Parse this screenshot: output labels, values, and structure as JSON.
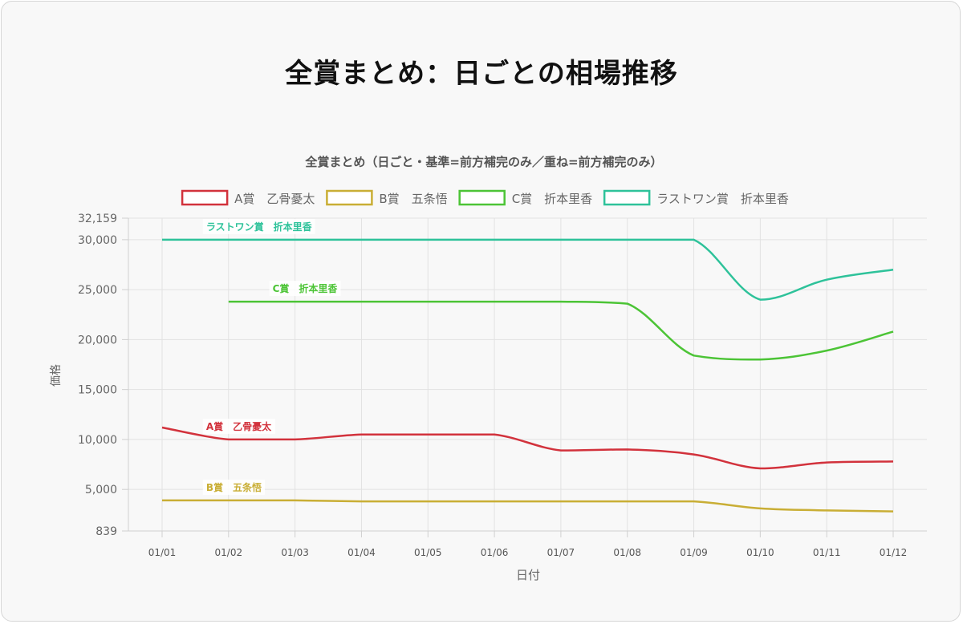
{
  "page": {
    "title": "全賞まとめ：日ごとの相場推移"
  },
  "chart_data": {
    "type": "line",
    "title": "全賞まとめ（日ごと・基準=前方補完のみ／重ね=前方補完のみ）",
    "xlabel": "日付",
    "ylabel": "価格",
    "categories": [
      "01/01",
      "01/02",
      "01/03",
      "01/04",
      "01/05",
      "01/06",
      "01/07",
      "01/08",
      "01/09",
      "01/10",
      "01/11",
      "01/12"
    ],
    "ylim": [
      839,
      32159
    ],
    "yticks": [
      {
        "value": 839,
        "label": "839"
      },
      {
        "value": 5000,
        "label": "5,000"
      },
      {
        "value": 10000,
        "label": "10,000"
      },
      {
        "value": 15000,
        "label": "15,000"
      },
      {
        "value": 20000,
        "label": "20,000"
      },
      {
        "value": 25000,
        "label": "25,000"
      },
      {
        "value": 30000,
        "label": "30,000"
      },
      {
        "value": 32159,
        "label": "32,159"
      }
    ],
    "grid": true,
    "legend_position": "top",
    "series": [
      {
        "name": "A賞　乙骨憂太",
        "color": "#d2323c",
        "label_index": 1,
        "values": [
          11200,
          10000,
          10000,
          10500,
          10500,
          10500,
          8900,
          9000,
          8500,
          7100,
          7700,
          7800
        ]
      },
      {
        "name": "B賞　五条悟",
        "color": "#c9ae35",
        "label_index": 1,
        "values": [
          3900,
          3900,
          3900,
          3800,
          3800,
          3800,
          3800,
          3800,
          3800,
          3100,
          2900,
          2800
        ]
      },
      {
        "name": "C賞　折本里香",
        "color": "#4cc436",
        "label_index": 2,
        "values": [
          null,
          23800,
          23800,
          23800,
          23800,
          23800,
          23800,
          23600,
          18400,
          18000,
          18900,
          20800
        ]
      },
      {
        "name": "ラストワン賞　折本里香",
        "color": "#2ec29a",
        "label_index": 1,
        "values": [
          30000,
          30000,
          30000,
          30000,
          30000,
          30000,
          30000,
          30000,
          30000,
          24000,
          26000,
          27000
        ]
      }
    ]
  }
}
